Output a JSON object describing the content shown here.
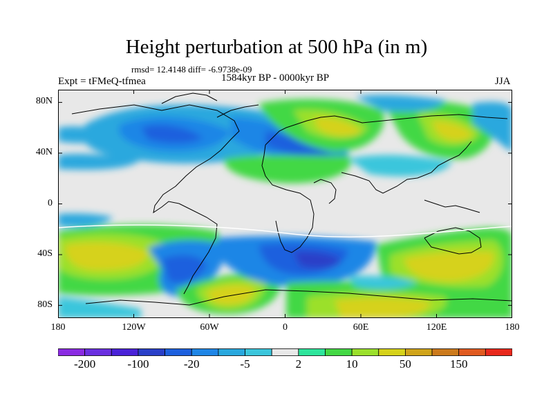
{
  "title": "Height perturbation at 500 hPa (in m)",
  "stats": "rmsd= 12.4148  diff= -6.9738e-09",
  "experiment": "Expt = tFMeQ-tfmea",
  "period": "1584kyr BP - 0000kyr BP",
  "season": "JJA",
  "y_axis": {
    "ticks": [
      {
        "label": "80N",
        "lat": 80
      },
      {
        "label": "40N",
        "lat": 40
      },
      {
        "label": "0",
        "lat": 0
      },
      {
        "label": "40S",
        "lat": -40
      },
      {
        "label": "80S",
        "lat": -80
      }
    ]
  },
  "x_axis": {
    "ticks": [
      {
        "label": "180",
        "lon": -180
      },
      {
        "label": "120W",
        "lon": -120
      },
      {
        "label": "60W",
        "lon": -60
      },
      {
        "label": "0",
        "lon": 0
      },
      {
        "label": "60E",
        "lon": 60
      },
      {
        "label": "120E",
        "lon": 120
      },
      {
        "label": "180",
        "lon": 180
      }
    ]
  },
  "colorbar": {
    "colors": [
      "#8b2be2",
      "#6a2fe0",
      "#4a22d8",
      "#2a3fc8",
      "#1d60de",
      "#1f86e6",
      "#29a8de",
      "#3bc6dc",
      "#e8e8e8",
      "#2ee59c",
      "#43d844",
      "#9be02c",
      "#d6d21a",
      "#d0a41a",
      "#cc7a1c",
      "#e05a20",
      "#e8281c"
    ],
    "labels": [
      {
        "text": "-200",
        "index": 1
      },
      {
        "text": "-100",
        "index": 3
      },
      {
        "text": "-20",
        "index": 5
      },
      {
        "text": "-5",
        "index": 7
      },
      {
        "text": "2",
        "index": 9
      },
      {
        "text": "10",
        "index": 11
      },
      {
        "text": "50",
        "index": 13
      },
      {
        "text": "150",
        "index": 15
      }
    ]
  },
  "colors": {
    "land_bg": "#e8e8e8",
    "neg_strong": "#1d60de",
    "neg_mid": "#1f86e6",
    "neg_weak": "#29a8de",
    "neg_light": "#3bc6dc",
    "pos_light": "#2ee59c",
    "pos_mid": "#43d844",
    "pos_yellow": "#9be02c",
    "pos_orange": "#d6d21a",
    "pos_strong": "#d0a41a"
  }
}
